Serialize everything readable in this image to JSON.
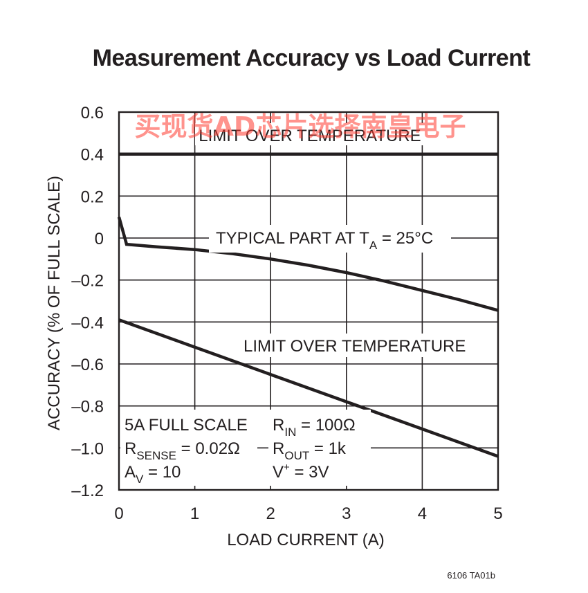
{
  "chart_data": {
    "type": "line",
    "title": "Measurement Accuracy vs Load Current",
    "xlabel": "LOAD CURRENT (A)",
    "ylabel": "ACCURACY (% OF FULL SCALE)",
    "xlim": [
      0,
      5
    ],
    "ylim": [
      -1.2,
      0.6
    ],
    "x_ticks": [
      0,
      1,
      2,
      3,
      4,
      5
    ],
    "y_ticks": [
      0.6,
      0.4,
      0.2,
      0,
      -0.2,
      -0.4,
      -0.6,
      -0.8,
      -1.0,
      -1.2
    ],
    "x_tick_labels": [
      "0",
      "1",
      "2",
      "3",
      "4",
      "5"
    ],
    "y_tick_labels": [
      "0.6",
      "0.4",
      "0.2",
      "0",
      "–0.2",
      "–0.4",
      "–0.6",
      "–0.8",
      "–1.0",
      "–1.2"
    ],
    "grid": true,
    "series": [
      {
        "key": "upper_limit",
        "x": [
          0,
          5
        ],
        "y": [
          0.4,
          0.4
        ]
      },
      {
        "key": "typical",
        "x": [
          0,
          0.1,
          0.5,
          1.0,
          1.5,
          2.0,
          2.5,
          3.0,
          3.5,
          4.0,
          4.5,
          5.0
        ],
        "y": [
          0.1,
          -0.03,
          -0.042,
          -0.055,
          -0.075,
          -0.1,
          -0.13,
          -0.165,
          -0.205,
          -0.25,
          -0.295,
          -0.345
        ]
      },
      {
        "key": "lower_limit",
        "x": [
          0,
          1,
          2,
          3,
          4,
          5
        ],
        "y": [
          -0.39,
          -0.52,
          -0.65,
          -0.78,
          -0.91,
          -1.04
        ]
      }
    ],
    "annotations": {
      "upper_limit_label": "LIMIT OVER TEMPERATURE",
      "typical_label": {
        "main": "TYPICAL PART AT T",
        "sub": "A",
        "rest": " = 25°C"
      },
      "lower_limit_label": "LIMIT OVER TEMPERATURE",
      "conditions": {
        "full_scale": "5A FULL SCALE",
        "rsense": {
          "main": "R",
          "sub": "SENSE",
          "rest": " = 0.02Ω"
        },
        "av": {
          "main": "A",
          "sub": "V",
          "rest": " = 10"
        },
        "rin": {
          "main": "R",
          "sub": "IN",
          "rest": " = 100Ω"
        },
        "rout": {
          "main": "R",
          "sub": "OUT",
          "rest": " = 1k"
        },
        "vplus": {
          "main": "V",
          "sup": "+",
          "rest": " = 3V"
        }
      }
    },
    "figure_id": "6106 TA01b",
    "watermark": "买现货AD芯片选择南皇电子",
    "colors": {
      "line": "#231f20",
      "grid": "#231f20",
      "watermark": "#ff3b30",
      "background": "#ffffff"
    }
  }
}
